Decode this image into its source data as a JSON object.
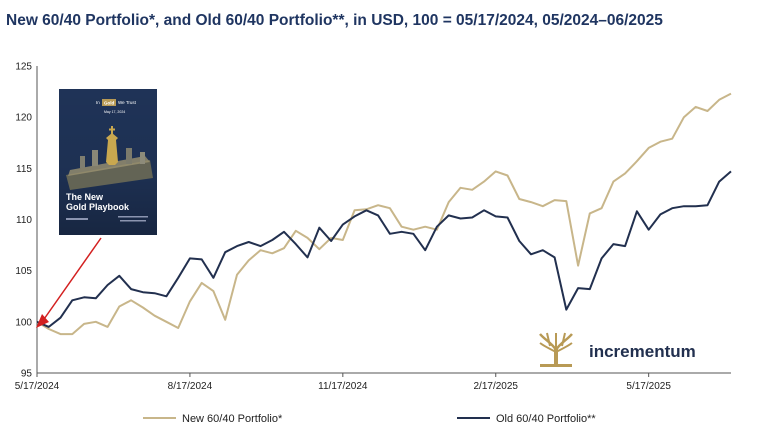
{
  "colors": {
    "title": "#1f3561",
    "new_series": "#c8b68a",
    "old_series": "#22304f",
    "brand_gold": "#b89a55",
    "brand_text": "#22304f",
    "arrow": "#d32020",
    "book_bg": "#1f3357"
  },
  "book": {
    "lines": [
      "In",
      "Gold",
      "We Trust",
      "May 17, 2024",
      "The New",
      "Gold Playbook"
    ],
    "icon": "gold-chess-king-icon"
  },
  "brand": {
    "name": "incrementum",
    "icon": "tree-logo-icon"
  },
  "chart_data": {
    "type": "line",
    "title": "New 60/40 Portfolio*, and Old 60/40 Portfolio**, in USD, 100 = 05/17/2024, 05/2024–06/2025",
    "xlabel": "",
    "ylabel": "",
    "ylim": [
      95,
      125
    ],
    "y_ticks": [
      95,
      100,
      105,
      110,
      115,
      120,
      125
    ],
    "x_ticks": [
      {
        "index": 0,
        "label": "5/17/2024"
      },
      {
        "index": 13,
        "label": "8/17/2024"
      },
      {
        "index": 26,
        "label": "11/17/2024"
      },
      {
        "index": 39,
        "label": "2/17/2025"
      },
      {
        "index": 52,
        "label": "5/17/2025"
      }
    ],
    "grid": false,
    "legend_position": "bottom",
    "series": [
      {
        "name": "New 60/40 Portfolio*",
        "values": [
          100.0,
          99.3,
          98.8,
          98.8,
          99.8,
          100.0,
          99.5,
          101.5,
          102.1,
          101.4,
          100.6,
          100.0,
          99.4,
          102.0,
          103.8,
          103.0,
          100.2,
          104.6,
          106.0,
          107.0,
          106.7,
          107.2,
          108.9,
          108.2,
          107.1,
          108.2,
          108.0,
          110.9,
          111.0,
          111.4,
          111.1,
          109.3,
          109.0,
          109.3,
          109.0,
          111.7,
          113.1,
          112.9,
          113.7,
          114.7,
          114.3,
          112.0,
          111.7,
          111.3,
          111.9,
          111.8,
          105.5,
          110.6,
          111.1,
          113.7,
          114.5,
          115.7,
          117.0,
          117.6,
          117.9,
          120.0,
          121.0,
          120.6,
          121.7,
          122.3
        ]
      },
      {
        "name": "Old 60/40 Portfolio**",
        "values": [
          100.0,
          99.5,
          100.4,
          102.1,
          102.4,
          102.3,
          103.6,
          104.5,
          103.2,
          102.9,
          102.8,
          102.5,
          104.3,
          106.2,
          106.1,
          104.3,
          106.8,
          107.4,
          107.8,
          107.4,
          108.0,
          108.8,
          107.6,
          106.3,
          109.2,
          107.9,
          109.5,
          110.3,
          110.9,
          110.4,
          108.6,
          108.8,
          108.6,
          107.0,
          109.3,
          110.4,
          110.1,
          110.2,
          110.9,
          110.3,
          110.2,
          107.9,
          106.6,
          107.0,
          106.3,
          101.2,
          103.3,
          103.2,
          106.2,
          107.6,
          107.4,
          110.8,
          109.0,
          110.5,
          111.1,
          111.3,
          111.3,
          111.4,
          113.7,
          114.7
        ]
      }
    ]
  }
}
